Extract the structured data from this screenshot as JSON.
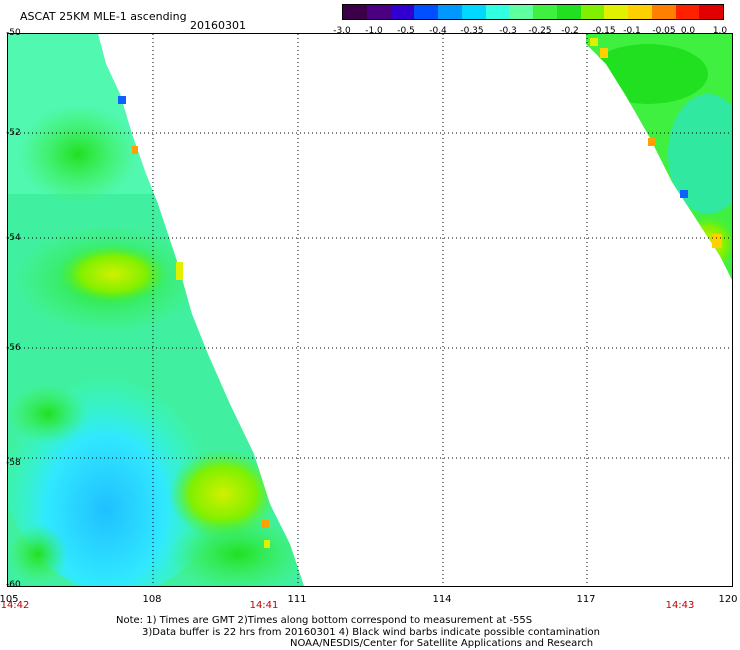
{
  "header": {
    "title": "ASCAT 25KM MLE-1 ascending",
    "date": "20160301"
  },
  "colorbar": {
    "colors": [
      "#3b0048",
      "#4a0080",
      "#3000d0",
      "#0050ff",
      "#0098ff",
      "#00d8ff",
      "#30ffe0",
      "#60ffa0",
      "#40f040",
      "#20e020",
      "#80f000",
      "#e0f000",
      "#ffd000",
      "#ff8000",
      "#ff2000",
      "#e00000"
    ],
    "labels": [
      "-3.0",
      "-1.0",
      "-0.5",
      "-0.4",
      "-0.35",
      "-0.3",
      "-0.25",
      "-0.2",
      "-0.15",
      "-0.1",
      "-0.05",
      "0.0",
      "1.0"
    ]
  },
  "map": {
    "y_ticks": [
      "-50",
      "-52",
      "-54",
      "-56",
      "-58",
      "-60"
    ],
    "x_ticks": [
      "105",
      "108",
      "111",
      "114",
      "117",
      "120"
    ],
    "time_labels": [
      "14:42",
      "14:41",
      "14:43"
    ]
  },
  "notes": {
    "line1": "Note: 1) Times are GMT 2)Times along bottom correspond to measurement at -55S",
    "line2": "3)Data buffer is 22 hrs from 20160301 4) Black wind barbs indicate possible contamination",
    "line3": "NOAA/NESDIS/Center for Satellite Applications and Research"
  }
}
